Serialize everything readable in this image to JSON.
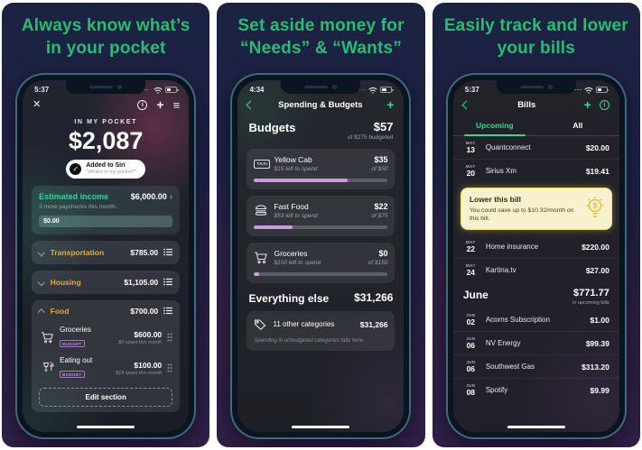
{
  "colors": {
    "headline_green": "#27bd72",
    "app_accent_green": "#3bd58b",
    "section_yellow": "#e2ab3a",
    "budget_badge_purple": "#a678cc",
    "progress_purple": "#c79ddd",
    "lower_bill_bg": "#f8f1cd",
    "lower_bill_border": "#eedd6a"
  },
  "icons": {
    "close": "✕",
    "plus": "+",
    "menu": "≡",
    "info": "i",
    "check": "✓",
    "chevron_right": "›"
  },
  "panel1": {
    "headline": "Always know what’s in your pocket",
    "status_time": "5:37",
    "pocket": {
      "label": "IN MY POCKET",
      "amount": "$2,087"
    },
    "siri": {
      "title": "Added to Siri",
      "subtitle": "“What’s in my pocket?”"
    },
    "income": {
      "title": "Estimated income",
      "subtitle": "3 more paychecks this month.",
      "amount": "$6,000.00",
      "bar_label": "$0.00"
    },
    "sections": [
      {
        "label": "Transportation",
        "amount": "$785.00"
      },
      {
        "label": "Housing",
        "amount": "$1,105.00"
      }
    ],
    "food": {
      "label": "Food",
      "amount": "$700.00",
      "items": [
        {
          "name": "Groceries",
          "badge": "BUDGET",
          "amount": "$600.00",
          "note": "$0 spent this month",
          "icon": "cart-icon"
        },
        {
          "name": "Eating out",
          "badge": "BUDGET",
          "amount": "$100.00",
          "note": "$18 spent this month",
          "icon": "dining-icon"
        }
      ]
    },
    "edit_button": "Edit section"
  },
  "panel2": {
    "headline": "Set aside money for “Needs” & “Wants”",
    "status_time": "4:34",
    "nav_title": "Spending & Budgets",
    "budgets": {
      "title": "Budgets",
      "amount": "$57",
      "subtitle": "of $275 budgeted"
    },
    "items": [
      {
        "name": "Yellow Cab",
        "left_note": "$15 left to spend",
        "amount": "$35",
        "of_note": "of $50",
        "progress_pct": 70,
        "icon": "taxi-icon",
        "taxi_label": "TAXI"
      },
      {
        "name": "Fast Food",
        "left_note": "$53 left to spend",
        "amount": "$22",
        "of_note": "of $75",
        "progress_pct": 29,
        "icon": "burger-icon"
      },
      {
        "name": "Groceries",
        "left_note": "$150 left to spend",
        "amount": "$0",
        "of_note": "of $150",
        "progress_pct": 4,
        "icon": "cart-icon"
      }
    ],
    "everything": {
      "title": "Everything else",
      "amount": "$31,266"
    },
    "other": {
      "name": "11 other categories",
      "amount": "$31,266",
      "note": "Spending in unbudgeted categories falls here."
    }
  },
  "panel3": {
    "headline": "Easily track and lower your bills",
    "status_time": "5:37",
    "nav_title": "Bills",
    "tabs": [
      {
        "label": "Upcoming"
      },
      {
        "label": "All"
      }
    ],
    "bills_upper": [
      {
        "month": "MAY",
        "day": "13",
        "name": "Quantconnect",
        "amount": "$20.00"
      },
      {
        "month": "MAY",
        "day": "20",
        "name": "Sirius Xm",
        "amount": "$19.41"
      }
    ],
    "lower_card": {
      "title": "Lower this bill",
      "body": "You could save up to $10.32/month on this bill."
    },
    "bills_mid": [
      {
        "month": "MAY",
        "day": "22",
        "name": "Home insurance",
        "amount": "$220.00"
      },
      {
        "month": "MAY",
        "day": "24",
        "name": "Kartina.tv",
        "amount": "$27.00"
      }
    ],
    "june": {
      "title": "June",
      "amount": "$771.77",
      "subtitle": "in upcoming bills"
    },
    "bills_june": [
      {
        "month": "JUN",
        "day": "02",
        "name": "Acorns Subscription",
        "amount": "$1.00"
      },
      {
        "month": "JUN",
        "day": "06",
        "name": "NV Energy",
        "amount": "$99.39"
      },
      {
        "month": "JUN",
        "day": "06",
        "name": "Southwest Gas",
        "amount": "$313.20"
      },
      {
        "month": "JUN",
        "day": "08",
        "name": "Spotify",
        "amount": "$9.99"
      }
    ]
  }
}
